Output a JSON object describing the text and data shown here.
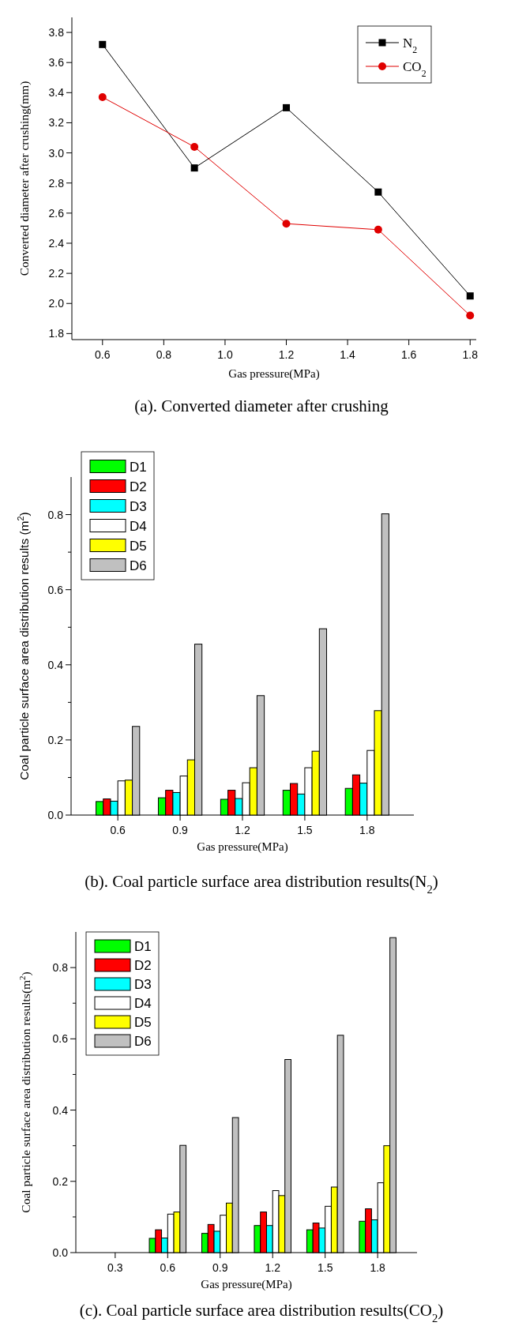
{
  "chart_data": [
    {
      "type": "line",
      "xlabel": "Gas pressure(MPa)",
      "ylabel": "Converted diameter after crushing(mm)",
      "annotations": [
        "(a). Converted diameter after crushing"
      ],
      "x": [
        0.6,
        0.9,
        1.2,
        1.5,
        1.8
      ],
      "xlim": [
        0.5,
        1.82
      ],
      "xticks": [
        0.6,
        0.8,
        {
          "value": 1.0,
          "label": "1.0"
        },
        1.2,
        1.4,
        1.6,
        1.8
      ],
      "ylim": [
        1.76,
        3.9
      ],
      "yticks": [
        1.8,
        {
          "value": 2.0,
          "label": "2.0"
        },
        2.2,
        2.4,
        2.6,
        2.8,
        {
          "value": 3.0,
          "label": "3.0"
        },
        3.2,
        3.4,
        3.6,
        3.8
      ],
      "legend": "top right",
      "series": [
        {
          "name": "N$_{2}$",
          "color": "#000000",
          "marker": "square",
          "values": [
            3.72,
            2.9,
            3.3,
            2.74,
            2.05
          ]
        },
        {
          "name": "CO$_{2}$",
          "color": "#e00000",
          "marker": "circle",
          "values": [
            3.37,
            3.04,
            2.53,
            2.49,
            1.92
          ]
        }
      ]
    },
    {
      "type": "bar",
      "xlabel": "Gas pressure(MPa)",
      "ylabel": "Coal particle surface area distribution results (m$^{2}$)",
      "annotations": [
        "(b). Coal particle surface area distribution results(N$_{2}$)"
      ],
      "categories": [
        "0.6",
        "0.9",
        "1.2",
        "1.5",
        "1.8"
      ],
      "ylim": [
        0,
        0.9
      ],
      "yticks": [
        {
          "value": 0,
          "label": "0.0"
        },
        {
          "value": 0.1,
          "label": null
        },
        0.2,
        {
          "value": 0.3,
          "label": null
        },
        0.4,
        {
          "value": 0.5,
          "label": null
        },
        0.6,
        {
          "value": 0.7,
          "label": null
        },
        0.8
      ],
      "legend": "top left",
      "series": [
        {
          "name": "D1",
          "color": "#00ff00",
          "values": [
            0.036,
            0.046,
            0.042,
            0.066,
            0.071
          ]
        },
        {
          "name": "D2",
          "color": "#ff0000",
          "values": [
            0.043,
            0.066,
            0.066,
            0.084,
            0.107
          ]
        },
        {
          "name": "D3",
          "color": "#00ffff",
          "values": [
            0.037,
            0.06,
            0.044,
            0.056,
            0.085
          ]
        },
        {
          "name": "D4",
          "color": "#ffffff",
          "values": [
            0.091,
            0.104,
            0.086,
            0.126,
            0.172
          ]
        },
        {
          "name": "D5",
          "color": "#ffff00",
          "values": [
            0.093,
            0.147,
            0.126,
            0.17,
            0.278
          ]
        },
        {
          "name": "D6",
          "color": "#c0c0c0",
          "values": [
            0.236,
            0.455,
            0.318,
            0.496,
            0.802
          ]
        }
      ]
    },
    {
      "type": "bar",
      "xlabel": "Gas pressure(MPa)",
      "ylabel": "Coal particle surface area distribution results(m$^{2}$)",
      "annotations": [
        "(c). Coal particle surface area distribution results(CO$_{2}$)"
      ],
      "categories": [
        "0.3",
        "0.6",
        "0.9",
        "1.2",
        "1.5",
        "1.8"
      ],
      "ylim": [
        0,
        0.9
      ],
      "yticks": [
        {
          "value": 0,
          "label": "0.0"
        },
        {
          "value": 0.1,
          "label": null
        },
        0.2,
        {
          "value": 0.3,
          "label": null
        },
        0.4,
        {
          "value": 0.5,
          "label": null
        },
        0.6,
        {
          "value": 0.7,
          "label": null
        },
        0.8
      ],
      "legend": "top left",
      "series": [
        {
          "name": "D1",
          "color": "#00ff00",
          "values": [
            null,
            0.04,
            0.054,
            0.076,
            0.064,
            0.088
          ]
        },
        {
          "name": "D2",
          "color": "#ff0000",
          "values": [
            null,
            0.064,
            0.079,
            0.114,
            0.083,
            0.123
          ]
        },
        {
          "name": "D3",
          "color": "#00ffff",
          "values": [
            null,
            0.041,
            0.06,
            0.076,
            0.069,
            0.092
          ]
        },
        {
          "name": "D4",
          "color": "#ffffff",
          "values": [
            null,
            0.108,
            0.105,
            0.174,
            0.13,
            0.196
          ]
        },
        {
          "name": "D5",
          "color": "#ffff00",
          "values": [
            null,
            0.114,
            0.139,
            0.16,
            0.184,
            0.3
          ]
        },
        {
          "name": "D6",
          "color": "#c0c0c0",
          "values": [
            null,
            0.301,
            0.379,
            0.542,
            0.61,
            0.884
          ]
        }
      ]
    }
  ]
}
